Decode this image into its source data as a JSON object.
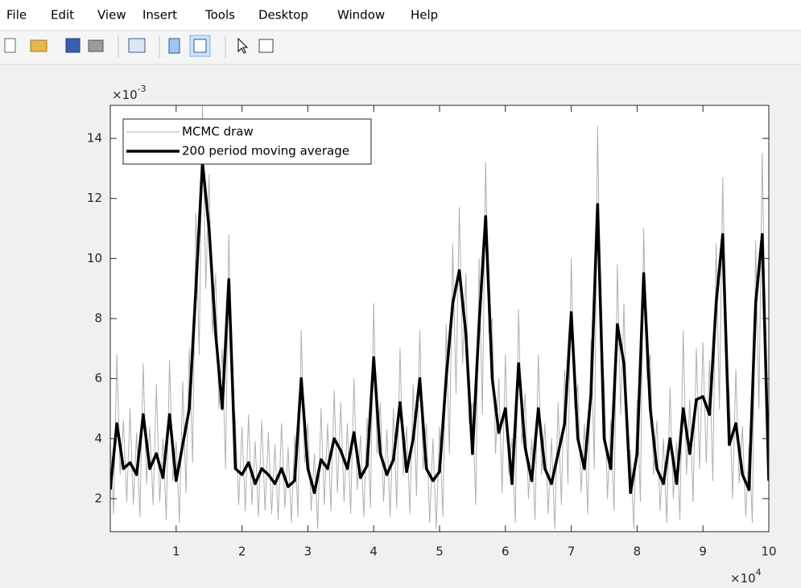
{
  "menu": [
    "File",
    "Edit",
    "View",
    "Insert",
    "Tools",
    "Desktop",
    "Window",
    "Help"
  ],
  "chart_data": {
    "type": "line",
    "y_multiplier": {
      "base": "×10",
      "exponent": "-3"
    },
    "x_multiplier": {
      "base": "×10",
      "exponent": "4"
    },
    "xlim": [
      0,
      100000
    ],
    "ylim": [
      0.0009,
      0.0151
    ],
    "xticks": [
      {
        "value": 10000,
        "label": "1"
      },
      {
        "value": 20000,
        "label": "2"
      },
      {
        "value": 30000,
        "label": "3"
      },
      {
        "value": 40000,
        "label": "4"
      },
      {
        "value": 50000,
        "label": "5"
      },
      {
        "value": 60000,
        "label": "6"
      },
      {
        "value": 70000,
        "label": "7"
      },
      {
        "value": 80000,
        "label": "8"
      },
      {
        "value": 90000,
        "label": "9"
      },
      {
        "value": 100000,
        "label": "10"
      }
    ],
    "yticks": [
      {
        "value": 0.002,
        "label": "2"
      },
      {
        "value": 0.004,
        "label": "4"
      },
      {
        "value": 0.006,
        "label": "6"
      },
      {
        "value": 0.008,
        "label": "8"
      },
      {
        "value": 0.01,
        "label": "10"
      },
      {
        "value": 0.012,
        "label": "12"
      },
      {
        "value": 0.014,
        "label": "14"
      }
    ],
    "legend": "upper left",
    "series": [
      {
        "name": "MCMC draw",
        "color": "#b0b0b0",
        "line_width": 1,
        "x": [
          0,
          500,
          1000,
          1500,
          2000,
          2500,
          3000,
          3500,
          4000,
          4500,
          5000,
          5500,
          6000,
          6500,
          7000,
          7500,
          8000,
          8500,
          9000,
          9500,
          10000,
          10500,
          11000,
          11500,
          12000,
          12500,
          13000,
          13500,
          14000,
          14500,
          15000,
          15500,
          16000,
          16500,
          17000,
          17500,
          18000,
          18500,
          19000,
          19500,
          20000,
          20500,
          21000,
          21500,
          22000,
          22500,
          23000,
          23500,
          24000,
          24500,
          25000,
          25500,
          26000,
          26500,
          27000,
          27500,
          28000,
          28500,
          29000,
          29500,
          30000,
          30500,
          31000,
          31500,
          32000,
          32500,
          33000,
          33500,
          34000,
          34500,
          35000,
          35500,
          36000,
          36500,
          37000,
          37500,
          38000,
          38500,
          39000,
          39500,
          40000,
          40500,
          41000,
          41500,
          42000,
          42500,
          43000,
          43500,
          44000,
          44500,
          45000,
          45500,
          46000,
          46500,
          47000,
          47500,
          48000,
          48500,
          49000,
          49500,
          50000,
          50500,
          51000,
          51500,
          52000,
          52500,
          53000,
          53500,
          54000,
          54500,
          55000,
          55500,
          56000,
          56500,
          57000,
          57500,
          58000,
          58500,
          59000,
          59500,
          60000,
          60500,
          61000,
          61500,
          62000,
          62500,
          63000,
          63500,
          64000,
          64500,
          65000,
          65500,
          66000,
          66500,
          67000,
          67500,
          68000,
          68500,
          69000,
          69500,
          70000,
          70500,
          71000,
          71500,
          72000,
          72500,
          73000,
          73500,
          74000,
          74500,
          75000,
          75500,
          76000,
          76500,
          77000,
          77500,
          78000,
          78500,
          79000,
          79500,
          80000,
          80500,
          81000,
          81500,
          82000,
          82500,
          83000,
          83500,
          84000,
          84500,
          85000,
          85500,
          86000,
          86500,
          87000,
          87500,
          88000,
          88500,
          89000,
          89500,
          90000,
          90500,
          91000,
          91500,
          92000,
          92500,
          93000,
          93500,
          94000,
          94500,
          95000,
          95500,
          96000,
          96500,
          97000,
          97500,
          98000,
          98500,
          99000,
          99500,
          100000
        ],
        "values": [
          0.004,
          0.0015,
          0.0068,
          0.0028,
          0.0046,
          0.0019,
          0.005,
          0.0018,
          0.0042,
          0.0014,
          0.0065,
          0.0025,
          0.0044,
          0.0018,
          0.0058,
          0.0019,
          0.004,
          0.0013,
          0.0066,
          0.0026,
          0.0039,
          0.0012,
          0.0059,
          0.0022,
          0.007,
          0.0032,
          0.0115,
          0.0068,
          0.0151,
          0.009,
          0.0128,
          0.0075,
          0.0095,
          0.005,
          0.007,
          0.003,
          0.0108,
          0.0056,
          0.0046,
          0.0018,
          0.0044,
          0.0016,
          0.0048,
          0.0018,
          0.0039,
          0.0014,
          0.0046,
          0.0016,
          0.0042,
          0.0015,
          0.0038,
          0.0013,
          0.0045,
          0.0017,
          0.0037,
          0.0012,
          0.0041,
          0.0014,
          0.0076,
          0.0032,
          0.0045,
          0.0016,
          0.0035,
          0.001,
          0.005,
          0.0018,
          0.0045,
          0.0016,
          0.0056,
          0.0022,
          0.0052,
          0.0019,
          0.0045,
          0.0015,
          0.006,
          0.0023,
          0.0041,
          0.0014,
          0.0047,
          0.0017,
          0.0085,
          0.0035,
          0.0052,
          0.0019,
          0.0043,
          0.0014,
          0.005,
          0.0017,
          0.007,
          0.0028,
          0.0044,
          0.0015,
          0.0058,
          0.0021,
          0.0076,
          0.003,
          0.0045,
          0.0012,
          0.004,
          0.001,
          0.0044,
          0.0014,
          0.0078,
          0.0035,
          0.0105,
          0.0055,
          0.0117,
          0.0065,
          0.0095,
          0.0045,
          0.0052,
          0.0018,
          0.01,
          0.0048,
          0.0132,
          0.0075,
          0.008,
          0.0035,
          0.006,
          0.0022,
          0.0068,
          0.0028,
          0.004,
          0.0012,
          0.0083,
          0.0038,
          0.0055,
          0.002,
          0.004,
          0.0013,
          0.0068,
          0.0028,
          0.0045,
          0.0015,
          0.004,
          0.001,
          0.0052,
          0.0018,
          0.0063,
          0.0025,
          0.01,
          0.005,
          0.0058,
          0.0022,
          0.0045,
          0.0015,
          0.0073,
          0.003,
          0.0144,
          0.0075,
          0.0058,
          0.002,
          0.0046,
          0.0016,
          0.0098,
          0.0048,
          0.0085,
          0.0036,
          0.0036,
          0.001,
          0.0053,
          0.0019,
          0.011,
          0.006,
          0.0068,
          0.0028,
          0.0046,
          0.0016,
          0.004,
          0.0012,
          0.0057,
          0.002,
          0.0039,
          0.0013,
          0.0076,
          0.0028,
          0.0053,
          0.0019,
          0.007,
          0.003,
          0.0072,
          0.0032,
          0.0066,
          0.0026,
          0.0105,
          0.005,
          0.0127,
          0.007,
          0.0055,
          0.002,
          0.0063,
          0.0025,
          0.0044,
          0.0014,
          0.0038,
          0.0012,
          0.0106,
          0.005,
          0.0135,
          0.007,
          0.0039
        ]
      },
      {
        "name": "200 period moving average",
        "color": "#000000",
        "line_width": 3.5,
        "x": [
          0,
          1000,
          2000,
          3000,
          4000,
          5000,
          6000,
          7000,
          8000,
          9000,
          10000,
          11000,
          12000,
          13000,
          14000,
          15000,
          16000,
          17000,
          18000,
          19000,
          20000,
          21000,
          22000,
          23000,
          24000,
          25000,
          26000,
          27000,
          28000,
          29000,
          30000,
          31000,
          32000,
          33000,
          34000,
          35000,
          36000,
          37000,
          38000,
          39000,
          40000,
          41000,
          42000,
          43000,
          44000,
          45000,
          46000,
          47000,
          48000,
          49000,
          50000,
          51000,
          52000,
          53000,
          54000,
          55000,
          56000,
          57000,
          58000,
          59000,
          60000,
          61000,
          62000,
          63000,
          64000,
          65000,
          66000,
          67000,
          68000,
          69000,
          70000,
          71000,
          72000,
          73000,
          74000,
          75000,
          76000,
          77000,
          78000,
          79000,
          80000,
          81000,
          82000,
          83000,
          84000,
          85000,
          86000,
          87000,
          88000,
          89000,
          90000,
          91000,
          92000,
          93000,
          94000,
          95000,
          96000,
          97000,
          98000,
          99000,
          100000
        ],
        "values": [
          0.0023,
          0.0045,
          0.003,
          0.0032,
          0.0028,
          0.0048,
          0.003,
          0.0035,
          0.0027,
          0.0048,
          0.0026,
          0.0038,
          0.005,
          0.009,
          0.0132,
          0.011,
          0.0075,
          0.005,
          0.0093,
          0.003,
          0.0028,
          0.0032,
          0.0025,
          0.003,
          0.0028,
          0.0025,
          0.003,
          0.0024,
          0.0026,
          0.006,
          0.003,
          0.0022,
          0.0033,
          0.003,
          0.004,
          0.0036,
          0.003,
          0.0042,
          0.0027,
          0.0031,
          0.0067,
          0.0035,
          0.0028,
          0.0033,
          0.0052,
          0.0029,
          0.004,
          0.006,
          0.003,
          0.0026,
          0.0029,
          0.006,
          0.0085,
          0.0096,
          0.0075,
          0.0035,
          0.0078,
          0.0114,
          0.006,
          0.0042,
          0.005,
          0.0025,
          0.0065,
          0.0037,
          0.0026,
          0.005,
          0.003,
          0.0025,
          0.0035,
          0.0045,
          0.0082,
          0.004,
          0.003,
          0.0055,
          0.0118,
          0.004,
          0.003,
          0.0078,
          0.0065,
          0.0022,
          0.0035,
          0.0095,
          0.005,
          0.003,
          0.0025,
          0.004,
          0.0025,
          0.005,
          0.0035,
          0.0053,
          0.0054,
          0.0048,
          0.0085,
          0.0108,
          0.0038,
          0.0045,
          0.0028,
          0.0023,
          0.0085,
          0.0108,
          0.0026
        ]
      }
    ]
  }
}
